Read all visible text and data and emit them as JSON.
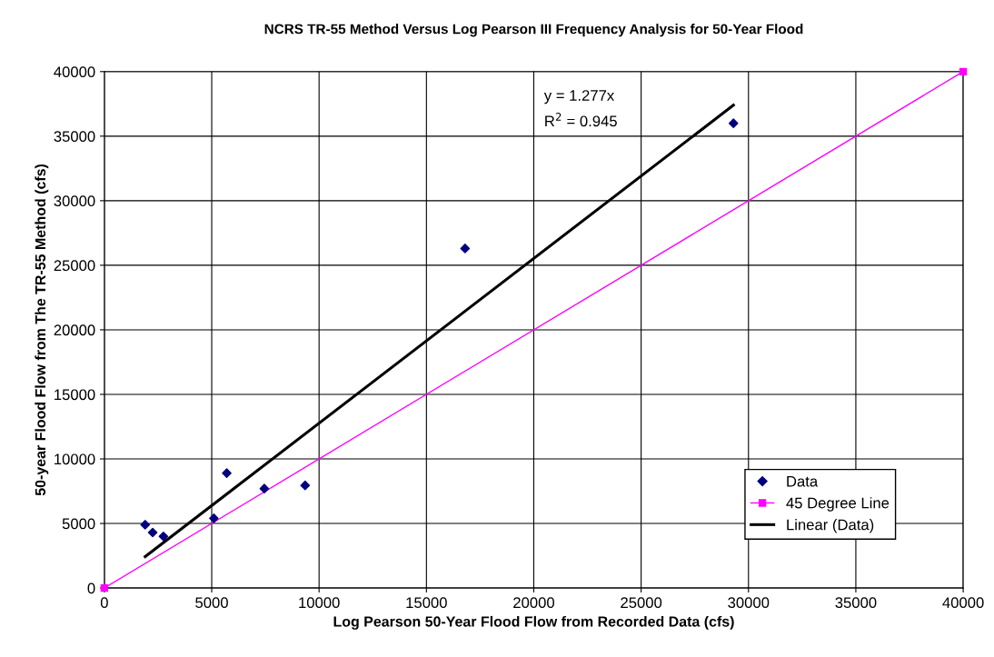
{
  "chart_data": {
    "type": "scatter",
    "title": "NCRS TR-55 Method Versus Log Pearson III Frequency Analysis for 50-Year Flood",
    "xlabel": "Log Pearson 50-Year Flood Flow from Recorded Data (cfs)",
    "ylabel": "50-year Flood Flow from The TR-55 Method (cfs)",
    "xlim": [
      0,
      40000
    ],
    "ylim": [
      0,
      40000
    ],
    "xticks": [
      0,
      5000,
      10000,
      15000,
      20000,
      25000,
      30000,
      35000,
      40000
    ],
    "yticks": [
      0,
      5000,
      10000,
      15000,
      20000,
      25000,
      30000,
      35000,
      40000
    ],
    "grid": true,
    "legend": "bottom right",
    "annotations": [
      "y = 1.277x",
      "R$^{2}$ = 0.945"
    ],
    "series": [
      {
        "name": "Data",
        "marker": "diamond",
        "color": "#000080",
        "x": [
          1900,
          2250,
          2750,
          5100,
          5700,
          7450,
          9350,
          16800,
          29300
        ],
        "values": [
          4900,
          4300,
          4000,
          5400,
          8900,
          7700,
          7950,
          26300,
          36000
        ]
      },
      {
        "name": "45 Degree Line",
        "type": "line",
        "marker": "square",
        "color": "#ff00ff",
        "x": [
          0,
          40000
        ],
        "values": [
          0,
          40000
        ]
      },
      {
        "name": "Linear (Data)",
        "type": "line",
        "marker": "none",
        "color": "#000000",
        "x": [
          1900,
          29300
        ],
        "values": [
          2430,
          37400
        ]
      }
    ]
  }
}
